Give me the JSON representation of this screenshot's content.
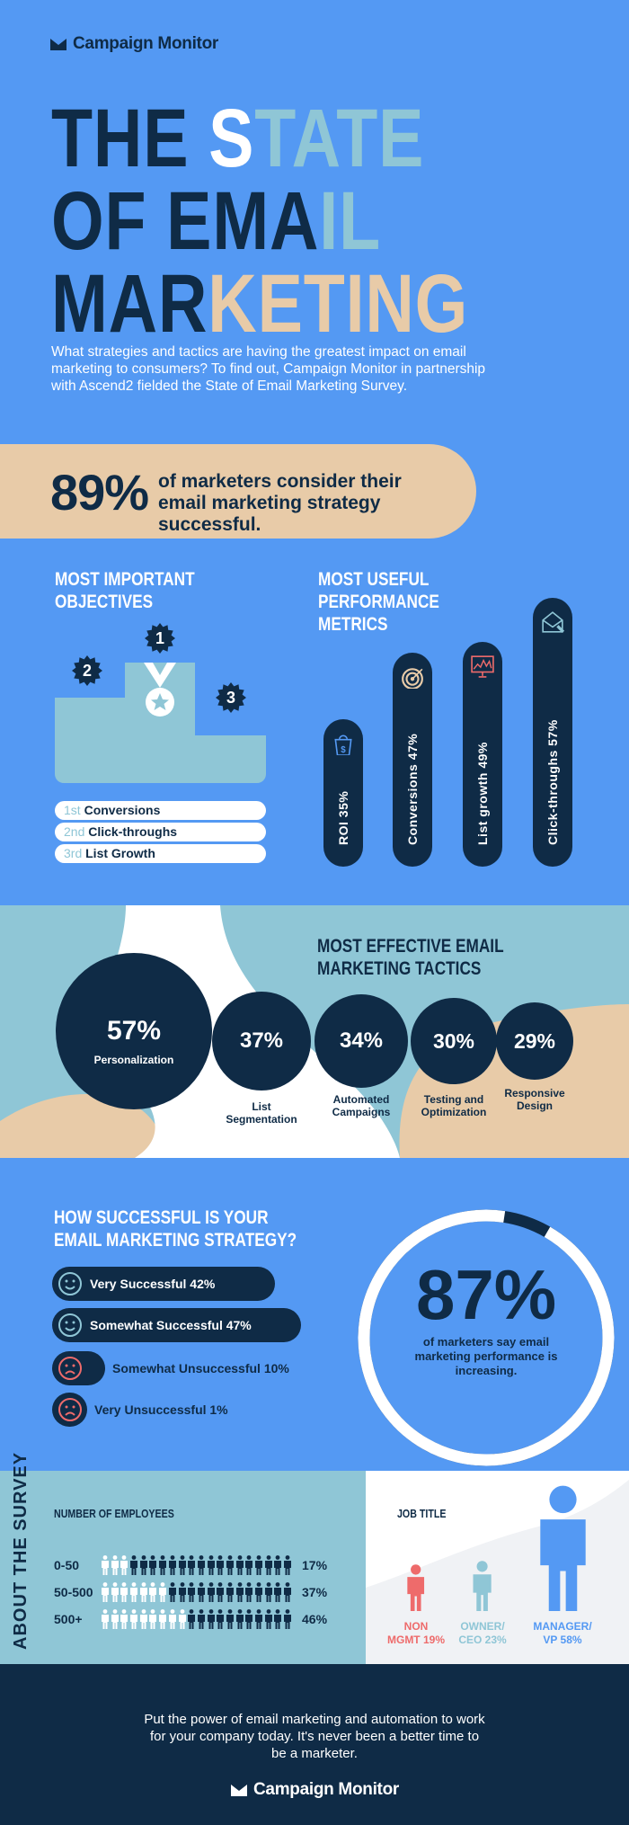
{
  "colors": {
    "blue": "#5499f3",
    "navy": "#0f2b46",
    "tan": "#e8cba8",
    "teal": "#8fc6d6",
    "white": "#ffffff",
    "red": "#ee6b6b",
    "gray": "#f0f2f5"
  },
  "brand": {
    "name": "Campaign Monitor",
    "icon": "envelope-logo-icon"
  },
  "hero": {
    "line1a": "THE ",
    "line1b": "S",
    "line1c": "TATE",
    "line2a": "OF EMA",
    "line2b": "IL",
    "line3a": "MAR",
    "line3b": "KETING",
    "intro": "What strategies and tactics are having the greatest impact on email marketing to consumers? To find out, Campaign Monitor in partnership with Ascend2 fielded the State of Email Marketing Survey."
  },
  "stat89": {
    "value": "89%",
    "text": "of marketers consider their email marketing strategy successful."
  },
  "objectives": {
    "title": "MOST IMPORTANT OBJECTIVES",
    "ranks": [
      "1",
      "2",
      "3"
    ],
    "items": [
      {
        "rank": "1st",
        "label": "Conversions"
      },
      {
        "rank": "2nd",
        "label": "Click-throughs"
      },
      {
        "rank": "3rd",
        "label": "List Growth"
      }
    ]
  },
  "metrics": {
    "title": "MOST USEFUL PERFORMANCE METRICS",
    "items": [
      {
        "label": "ROI 35%",
        "value": 35,
        "icon": "shopping-bag-dollar-icon"
      },
      {
        "label": "Conversions 47%",
        "value": 47,
        "icon": "target-icon"
      },
      {
        "label": "List growth 49%",
        "value": 49,
        "icon": "chart-monitor-icon"
      },
      {
        "label": "Click-throughs 57%",
        "value": 57,
        "icon": "envelope-cursor-icon"
      }
    ]
  },
  "tactics": {
    "title": "MOST EFFECTIVE EMAIL MARKETING TACTICS",
    "items": [
      {
        "value": "57%",
        "label": "Personalization"
      },
      {
        "value": "37%",
        "label": "List Segmentation"
      },
      {
        "value": "34%",
        "label": "Automated Campaigns"
      },
      {
        "value": "30%",
        "label": "Testing and Optimization"
      },
      {
        "value": "29%",
        "label": "Responsive Design"
      }
    ]
  },
  "success": {
    "title": "HOW SUCCESSFUL IS YOUR EMAIL MARKETING STRATEGY?",
    "items": [
      {
        "label": "Very Successful 42%",
        "value": 42,
        "face": "smile-icon"
      },
      {
        "label": "Somewhat Successful 47%",
        "value": 47,
        "face": "smile-icon"
      },
      {
        "label": "Somewhat Unsuccessful 10%",
        "value": 10,
        "face": "frown-icon"
      },
      {
        "label": "Very Unsuccessful 1%",
        "value": 1,
        "face": "frown-icon"
      }
    ]
  },
  "stat87": {
    "value": "87%",
    "percent": 87,
    "text": "of marketers say email marketing performance is increasing."
  },
  "survey": {
    "title": "ABOUT THE SURVEY",
    "employees_title": "NUMBER OF EMPLOYEES",
    "employees": [
      {
        "label": "0-50",
        "pct": "17%",
        "value": 17
      },
      {
        "label": "50-500",
        "pct": "37%",
        "value": 37
      },
      {
        "label": "500+",
        "pct": "46%",
        "value": 46
      }
    ],
    "job_title": "JOB TITLE",
    "jobs": [
      {
        "label1": "NON",
        "label2": "MGMT 19%",
        "value": 19,
        "color": "#ee6b6b"
      },
      {
        "label1": "OWNER/",
        "label2": "CEO 23%",
        "value": 23,
        "color": "#8fc6d6"
      },
      {
        "label1": "MANAGER/",
        "label2": "VP 58%",
        "value": 58,
        "color": "#5499f3"
      }
    ]
  },
  "footer": {
    "text": "Put the power of email marketing and automation to work for your company today. It's never been a better time to be a marketer."
  }
}
